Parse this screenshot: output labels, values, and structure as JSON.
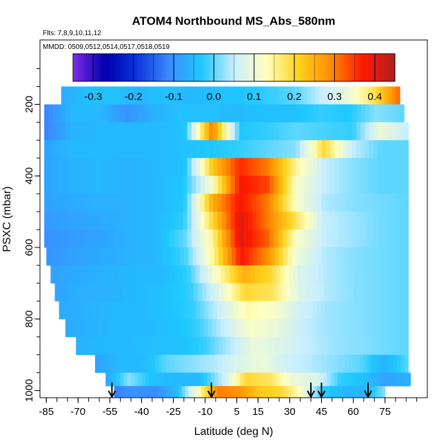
{
  "chart_data": {
    "type": "heatmap",
    "title": "ATOM4 Northbound MS_Abs_580nm",
    "flights_note": "Flts: 7,8,9,10,11,12",
    "dates_note": "MMDD: 0509,0512,0514,0517,0518,0519",
    "xlabel": "Latitude (deg N)",
    "ylabel": "PSXC (mbar)",
    "xlim": [
      -88,
      95
    ],
    "ylim": [
      1020,
      20
    ],
    "x_ticks": [
      -85,
      -70,
      -55,
      -40,
      -25,
      -10,
      5,
      15,
      30,
      45,
      60,
      75
    ],
    "y_ticks": [
      200,
      400,
      600,
      800,
      1000
    ],
    "colorbar": {
      "min": -0.35,
      "max": 0.45,
      "ticks": [
        "-0.3",
        "-0.2",
        "-0.1",
        "0.0",
        "0.1",
        "0.2",
        "0.3",
        "0.4"
      ],
      "tick_values": [
        -0.3,
        -0.2,
        -0.1,
        0.0,
        0.1,
        0.2,
        0.3,
        0.4
      ],
      "colors": [
        "#7f2be6",
        "#0000b0",
        "#0d35d9",
        "#3b8cff",
        "#1ec8ff",
        "#c8eeff",
        "#ffffbf",
        "#ffd21e",
        "#ff8c00",
        "#ff1a00",
        "#b02020"
      ]
    },
    "flight_profile_latitudes": [
      -54,
      -7,
      40,
      45,
      67
    ],
    "bands": [
      {
        "p": 175,
        "lat0": -78,
        "lat1": 82,
        "values": [
          -0.07,
          -0.04,
          -0.04,
          -0.05,
          -0.04,
          -0.05,
          -0.04,
          -0.03,
          -0.02,
          0.0,
          0.05,
          0.1,
          0.18,
          0.32
        ]
      },
      {
        "p": 225,
        "lat0": -86,
        "lat1": 84,
        "values": [
          -0.12,
          -0.05,
          -0.05,
          -0.1,
          -0.06,
          -0.04,
          -0.04,
          -0.05,
          -0.04,
          -0.04,
          -0.02,
          -0.03,
          0.02,
          0.0
        ]
      },
      {
        "p": 275,
        "lat0": -86,
        "lat1": 86,
        "values": [
          -0.12,
          -0.06,
          -0.05,
          -0.05,
          -0.05,
          -0.04,
          0.3,
          -0.03,
          -0.02,
          0.0,
          -0.01,
          -0.02,
          0.1,
          0.05
        ]
      },
      {
        "p": 325,
        "lat0": -86,
        "lat1": 86,
        "values": [
          -0.08,
          -0.05,
          -0.05,
          -0.05,
          -0.05,
          -0.04,
          -0.03,
          -0.02,
          0.0,
          0.02,
          0.2,
          0.05,
          0.0,
          0.0
        ]
      },
      {
        "p": 375,
        "lat0": -86,
        "lat1": 86,
        "values": [
          -0.08,
          -0.06,
          -0.05,
          -0.06,
          -0.05,
          -0.04,
          0.22,
          0.36,
          0.3,
          0.15,
          0.05,
          0.02,
          0.0,
          0.0
        ]
      },
      {
        "p": 425,
        "lat0": -86,
        "lat1": 86,
        "values": [
          -0.08,
          -0.06,
          -0.05,
          -0.06,
          -0.05,
          -0.03,
          0.12,
          0.38,
          0.34,
          0.12,
          0.05,
          0.02,
          0.0,
          0.0
        ]
      },
      {
        "p": 475,
        "lat0": -86,
        "lat1": 86,
        "values": [
          -0.08,
          -0.07,
          -0.06,
          -0.06,
          -0.05,
          -0.03,
          0.25,
          0.38,
          0.3,
          0.12,
          0.04,
          0.02,
          0.01,
          0.0
        ]
      },
      {
        "p": 525,
        "lat0": -86,
        "lat1": 86,
        "values": [
          -0.09,
          -0.08,
          -0.07,
          -0.06,
          -0.05,
          -0.02,
          0.2,
          0.4,
          0.3,
          0.18,
          0.05,
          0.03,
          0.01,
          0.0
        ]
      },
      {
        "p": 575,
        "lat0": -86,
        "lat1": 86,
        "values": [
          -0.1,
          -0.09,
          -0.08,
          -0.06,
          -0.05,
          0.0,
          0.15,
          0.4,
          0.32,
          0.12,
          0.05,
          0.03,
          0.01,
          0.0
        ]
      },
      {
        "p": 625,
        "lat0": -85,
        "lat1": 86,
        "values": [
          -0.1,
          -0.08,
          -0.07,
          -0.06,
          -0.05,
          -0.01,
          0.15,
          0.38,
          0.28,
          0.1,
          0.04,
          0.02,
          0.01,
          0.0
        ]
      },
      {
        "p": 675,
        "lat0": -83,
        "lat1": 86,
        "values": [
          -0.08,
          -0.07,
          -0.06,
          -0.05,
          -0.05,
          -0.02,
          0.12,
          0.25,
          0.2,
          0.08,
          0.04,
          0.02,
          0.01,
          0.0
        ]
      },
      {
        "p": 725,
        "lat0": -81,
        "lat1": 86,
        "values": [
          -0.08,
          -0.06,
          -0.06,
          -0.05,
          -0.04,
          -0.02,
          0.08,
          0.2,
          0.18,
          0.08,
          0.04,
          0.02,
          0.01,
          0.0
        ]
      },
      {
        "p": 775,
        "lat0": -79,
        "lat1": 86,
        "values": [
          -0.07,
          -0.06,
          -0.05,
          -0.05,
          -0.04,
          -0.02,
          0.06,
          0.14,
          0.12,
          0.06,
          0.03,
          0.02,
          0.01,
          0.0
        ]
      },
      {
        "p": 825,
        "lat0": -76,
        "lat1": 86,
        "values": [
          -0.07,
          -0.06,
          -0.05,
          -0.05,
          -0.04,
          -0.02,
          0.05,
          0.12,
          0.1,
          0.05,
          0.03,
          0.02,
          0.01,
          0.0
        ]
      },
      {
        "p": 875,
        "lat0": -71,
        "lat1": 86,
        "values": [
          -0.06,
          -0.05,
          -0.05,
          -0.04,
          -0.04,
          -0.02,
          0.04,
          0.1,
          0.08,
          0.05,
          0.03,
          0.02,
          0.01,
          0.0
        ]
      },
      {
        "p": 925,
        "lat0": -62,
        "lat1": 86,
        "values": [
          -0.08,
          -0.05,
          -0.05,
          0.0,
          0.02,
          0.04,
          0.08,
          0.1,
          0.06,
          0.04,
          0.02,
          0.0,
          -0.06,
          0.0
        ]
      },
      {
        "p": 975,
        "lat0": -57,
        "lat1": 87,
        "values": [
          -0.08,
          0.02,
          -0.04,
          -0.05,
          -0.05,
          0.05,
          0.2,
          0.18,
          0.1,
          0.08,
          -0.02,
          -0.04,
          -0.08,
          -0.06
        ]
      },
      {
        "p": 1000,
        "lat0": -53,
        "lat1": 75,
        "values": [
          -0.12,
          -0.1,
          -0.11,
          -0.05,
          0.12,
          0.3,
          0.28,
          0.22,
          0.2,
          0.12,
          -0.02,
          -0.05,
          -0.06,
          0.02
        ]
      }
    ]
  }
}
